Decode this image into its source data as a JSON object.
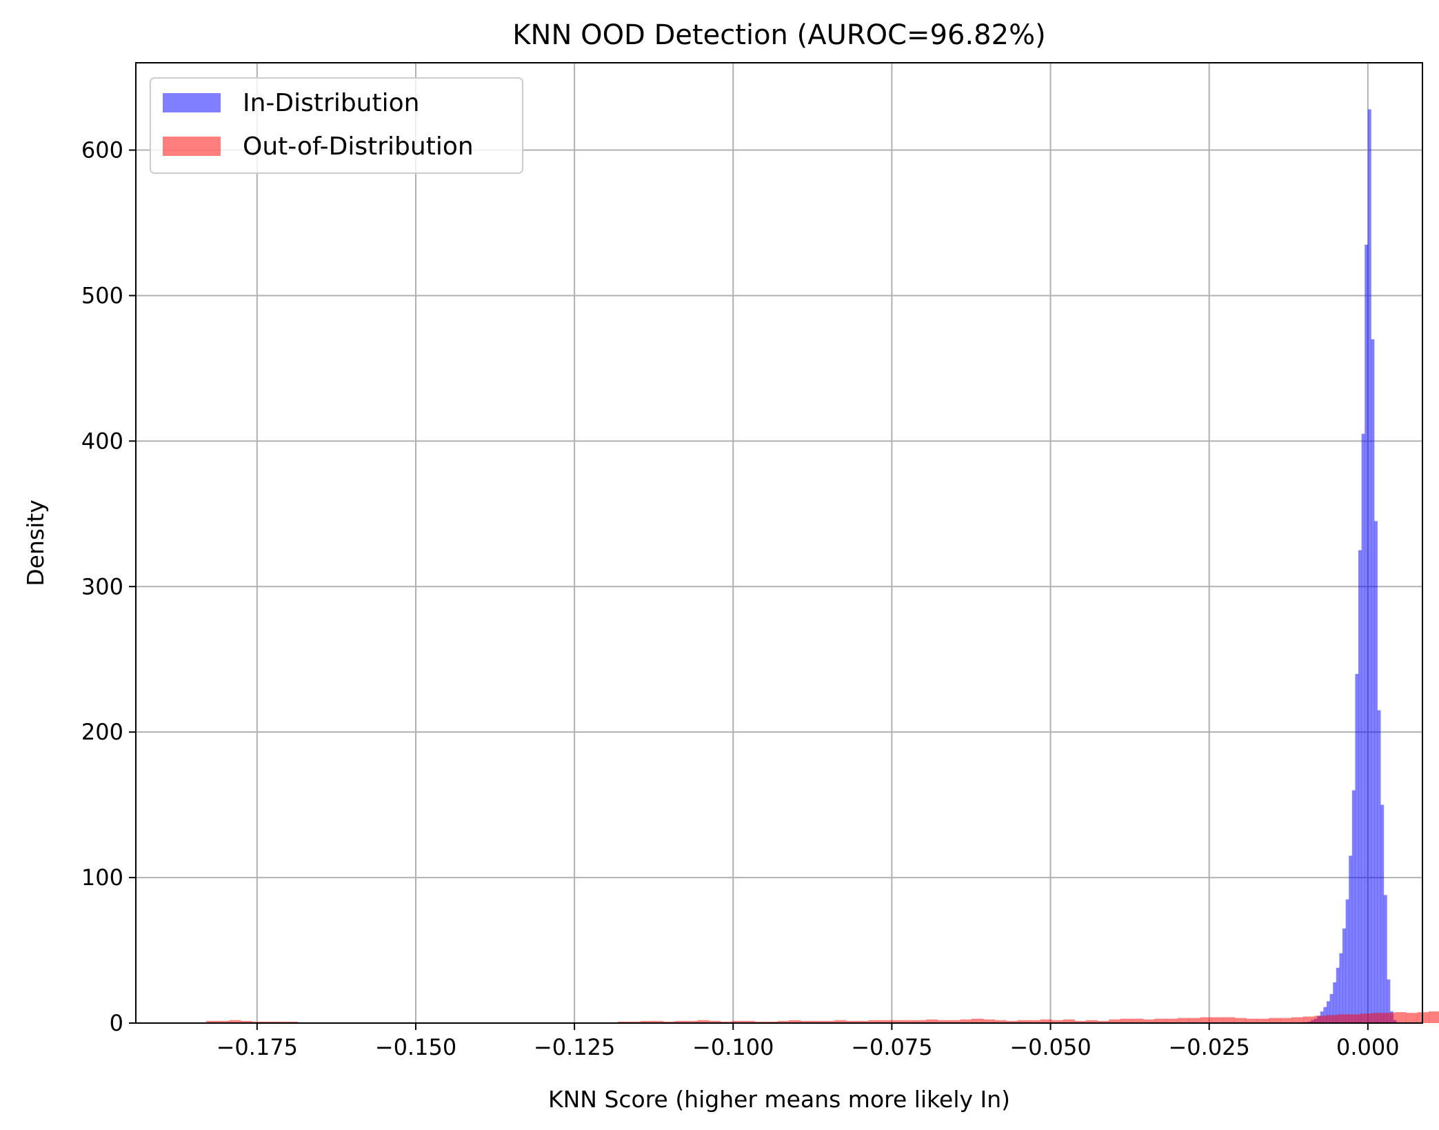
{
  "chart_data": {
    "type": "histogram",
    "title": "KNN OOD Detection (AUROC=96.82%)",
    "xlabel": "KNN Score (higher means more likely In)",
    "ylabel": "Density",
    "xlim": [
      -0.1941,
      0.0086
    ],
    "ylim": [
      0,
      660
    ],
    "xticks": [
      -0.175,
      -0.15,
      -0.125,
      -0.1,
      -0.075,
      -0.05,
      -0.025,
      0.0
    ],
    "xtick_labels": [
      "−0.175",
      "−0.150",
      "−0.125",
      "−0.100",
      "−0.075",
      "−0.050",
      "−0.025",
      "0.000"
    ],
    "yticks": [
      0,
      100,
      200,
      300,
      400,
      500,
      600
    ],
    "ytick_labels": [
      "0",
      "100",
      "200",
      "300",
      "400",
      "500",
      "600"
    ],
    "grid": true,
    "legend_position": "top-left",
    "series": [
      {
        "name": "In-Distribution",
        "color": "#0000ff",
        "alpha": 0.5,
        "bins": [
          [
            -0.011,
            -0.0105,
            0.3
          ],
          [
            -0.0105,
            -0.01,
            0.5
          ],
          [
            -0.01,
            -0.0095,
            0.6
          ],
          [
            -0.0095,
            -0.009,
            1
          ],
          [
            -0.009,
            -0.0085,
            2
          ],
          [
            -0.0085,
            -0.008,
            3
          ],
          [
            -0.008,
            -0.0075,
            5
          ],
          [
            -0.0075,
            -0.007,
            8
          ],
          [
            -0.007,
            -0.0065,
            11
          ],
          [
            -0.0065,
            -0.006,
            15
          ],
          [
            -0.006,
            -0.0055,
            20
          ],
          [
            -0.0055,
            -0.005,
            28
          ],
          [
            -0.005,
            -0.0045,
            38
          ],
          [
            -0.0045,
            -0.004,
            48
          ],
          [
            -0.004,
            -0.0035,
            65
          ],
          [
            -0.0035,
            -0.003,
            85
          ],
          [
            -0.003,
            -0.0025,
            115
          ],
          [
            -0.0025,
            -0.002,
            160
          ],
          [
            -0.002,
            -0.0015,
            240
          ],
          [
            -0.0015,
            -0.001,
            325
          ],
          [
            -0.001,
            -0.0005,
            405
          ],
          [
            -0.0005,
            0.0,
            535
          ],
          [
            0.0,
            0.0005,
            628
          ],
          [
            0.0005,
            0.001,
            470
          ],
          [
            0.001,
            0.0015,
            345
          ],
          [
            0.0015,
            0.002,
            215
          ],
          [
            0.002,
            0.0025,
            150
          ],
          [
            0.0025,
            0.003,
            88
          ],
          [
            0.003,
            0.0035,
            30
          ],
          [
            0.0035,
            0.004,
            8
          ],
          [
            0.004,
            0.0045,
            2
          ]
        ]
      },
      {
        "name": "Out-of-Distribution",
        "color": "#ff0000",
        "alpha": 0.5,
        "bins_start": -0.183,
        "bin_width": 0.0018,
        "values": [
          1.5,
          1.5,
          2,
          1.5,
          1,
          1,
          1,
          1,
          0.5,
          0.5,
          0.5,
          0.5,
          0.5,
          0.5,
          0.5,
          0.5,
          0.5,
          0.5,
          0.5,
          0.5,
          0.5,
          0.5,
          0.5,
          0.5,
          0.5,
          0.5,
          0.5,
          0.5,
          0.5,
          0.5,
          0.5,
          0.5,
          0.5,
          0.5,
          0.5,
          0.5,
          1,
          1,
          1.5,
          1.5,
          1,
          1.5,
          1.5,
          2,
          1.5,
          1,
          1.5,
          1.5,
          1,
          1,
          1.5,
          2,
          1.5,
          1.5,
          1.5,
          2,
          1.5,
          1.5,
          2,
          2,
          2,
          2,
          2,
          2.5,
          2,
          2,
          2.5,
          3,
          2.5,
          2,
          1.5,
          2,
          2,
          2.5,
          2,
          2.5,
          1.5,
          2,
          1.5,
          2.5,
          3,
          3,
          2.5,
          3,
          3,
          3.5,
          3.5,
          4,
          4,
          4,
          3.5,
          3,
          3,
          3.5,
          3.5,
          4,
          4.5,
          5,
          5.5,
          6,
          6,
          6.5,
          7,
          7,
          7.5,
          7,
          7.5,
          8,
          7.5,
          7,
          8.5,
          8,
          7.5,
          7.5,
          7,
          6.5,
          7,
          7.5,
          8,
          10,
          10.5,
          10,
          9,
          9,
          8.5,
          8,
          7,
          6.5,
          6,
          5.5,
          5.5,
          6,
          6,
          6,
          6.5,
          5,
          4.5,
          4,
          3.5,
          3,
          3.5,
          4,
          4,
          4.5,
          4.5,
          5.5,
          6,
          6,
          6.5,
          8,
          10,
          14,
          18,
          20,
          21,
          19,
          17,
          15,
          17,
          21,
          19,
          14,
          11.5,
          10,
          8,
          7,
          4.5,
          3,
          2.5,
          3,
          3.5,
          4.5,
          5,
          5.5,
          7,
          8,
          9,
          10,
          9,
          8,
          8,
          8,
          6,
          6,
          4.5,
          4,
          3.5,
          5,
          9,
          14,
          22,
          35,
          35
        ]
      }
    ]
  }
}
